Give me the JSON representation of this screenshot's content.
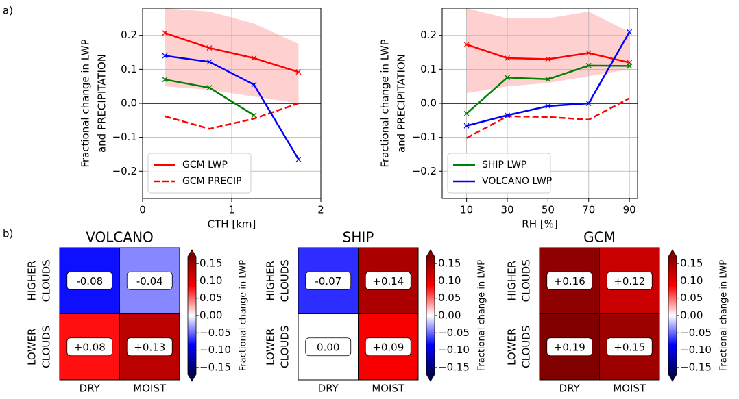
{
  "panel_labels": [
    "a)",
    "b)"
  ],
  "chart_data": [
    {
      "type": "line",
      "xlabel": "CTH [km]",
      "ylabel": [
        "Fractional change in LWP",
        "and PRECIPITATION"
      ],
      "x": [
        0.25,
        0.75,
        1.25,
        1.75
      ],
      "xlim": [
        0,
        2
      ],
      "xticks": [
        0,
        1,
        2
      ],
      "ylim": [
        -0.28,
        0.28
      ],
      "yticks": [
        {
          "value": -0.2,
          "label": "−0.2"
        },
        {
          "value": -0.1,
          "label": "−0.1"
        },
        {
          "value": 0,
          "label": "0.0"
        },
        0.1,
        0.2
      ],
      "grid": true,
      "hline": 0,
      "legend": "lower left",
      "band": {
        "color": "#ffd0d0",
        "lower": [
          0.05,
          0.04,
          0.02,
          0.0
        ],
        "upper": [
          0.28,
          0.27,
          0.235,
          0.175
        ]
      },
      "series": [
        {
          "name": "GCM LWP",
          "color": "#ff0000",
          "dash": false,
          "markers": true,
          "values": [
            0.207,
            0.163,
            0.133,
            0.092
          ]
        },
        {
          "name": "GCM PRECIP",
          "color": "#ff0000",
          "dash": true,
          "markers": false,
          "values": [
            -0.038,
            -0.075,
            -0.045,
            0.0
          ]
        },
        {
          "color": "#008000",
          "dash": false,
          "markers": true,
          "values": [
            0.07,
            0.046,
            -0.035,
            null
          ]
        },
        {
          "color": "#0000ff",
          "dash": false,
          "markers": true,
          "values": [
            0.14,
            0.122,
            0.055,
            -0.165
          ]
        }
      ]
    },
    {
      "type": "line",
      "xlabel": "RH [%]",
      "ylabel": [
        "Fractional change in LWP",
        "and PRECIPITATION"
      ],
      "x": [
        10,
        30,
        50,
        70,
        90
      ],
      "xlim": [
        -2,
        94
      ],
      "xticks": [
        10,
        30,
        50,
        70,
        90
      ],
      "ylim": [
        -0.28,
        0.28
      ],
      "yticks": [
        {
          "value": -0.2,
          "label": "−0.2"
        },
        {
          "value": -0.1,
          "label": "−0.1"
        },
        {
          "value": 0,
          "label": "0.0"
        },
        0.1,
        0.2
      ],
      "grid": true,
      "hline": 0,
      "legend": "lower left",
      "band": {
        "color": "#ffd0d0",
        "lower": [
          0.03,
          0.05,
          0.06,
          0.08,
          0.1
        ],
        "upper": [
          0.28,
          0.25,
          0.25,
          0.27,
          0.21
        ]
      },
      "series": [
        {
          "color": "#ff0000",
          "dash": false,
          "markers": true,
          "values": [
            0.173,
            0.133,
            0.13,
            0.148,
            0.12
          ]
        },
        {
          "color": "#ff0000",
          "dash": true,
          "markers": false,
          "values": [
            -0.102,
            -0.038,
            -0.04,
            -0.048,
            0.015
          ]
        },
        {
          "name": "SHIP LWP",
          "color": "#008000",
          "dash": false,
          "markers": true,
          "values": [
            -0.03,
            0.076,
            0.071,
            0.111,
            0.11
          ]
        },
        {
          "name": "VOLCANO LWP",
          "color": "#0000ff",
          "dash": false,
          "markers": true,
          "values": [
            -0.066,
            -0.035,
            -0.008,
            0.0,
            0.21
          ]
        }
      ]
    },
    {
      "type": "heatmap",
      "title": "VOLCANO",
      "rows": [
        [
          "HIGHER",
          "CLOUDS"
        ],
        [
          "LOWER",
          "CLOUDS"
        ]
      ],
      "columns": [
        "DRY",
        "MOIST"
      ],
      "values": [
        [
          -0.08,
          -0.04
        ],
        [
          0.08,
          0.13
        ]
      ],
      "value_labels": [
        [
          "-0.08",
          "-0.04"
        ],
        [
          "+0.08",
          "+0.13"
        ]
      ],
      "colormap": "seismic",
      "clim": [
        -0.17,
        0.17
      ],
      "colorbar_label": "Fractional change in LWP",
      "cticks": [
        {
          "value": 0.15,
          "label": "0.15"
        },
        {
          "value": 0.1,
          "label": "0.10"
        },
        {
          "value": 0.05,
          "label": "0.05"
        },
        {
          "value": 0,
          "label": "0.00"
        },
        {
          "value": -0.05,
          "label": "−0.05"
        },
        {
          "value": -0.1,
          "label": "−0.10"
        },
        {
          "value": -0.15,
          "label": "−0.15"
        }
      ]
    },
    {
      "type": "heatmap",
      "title": "SHIP",
      "rows": [
        [
          "HIGHER",
          "CLOUDS"
        ],
        [
          "LOWER",
          "CLOUDS"
        ]
      ],
      "columns": [
        "DRY",
        "MOIST"
      ],
      "values": [
        [
          -0.07,
          0.14
        ],
        [
          0.0,
          0.09
        ]
      ],
      "value_labels": [
        [
          "-0.07",
          "+0.14"
        ],
        [
          "0.00",
          "+0.09"
        ]
      ],
      "colormap": "seismic",
      "clim": [
        -0.17,
        0.17
      ],
      "colorbar_label": "Fractional change in LWP",
      "cticks": [
        {
          "value": 0.15,
          "label": "0.15"
        },
        {
          "value": 0.1,
          "label": "0.10"
        },
        {
          "value": 0.05,
          "label": "0.05"
        },
        {
          "value": 0,
          "label": "0.00"
        },
        {
          "value": -0.05,
          "label": "−0.05"
        },
        {
          "value": -0.1,
          "label": "−0.10"
        },
        {
          "value": -0.15,
          "label": "−0.15"
        }
      ]
    },
    {
      "type": "heatmap",
      "title": "GCM",
      "rows": [
        [
          "HIGHER",
          "CLOUDS"
        ],
        [
          "LOWER",
          "CLOUDS"
        ]
      ],
      "columns": [
        "DRY",
        "MOIST"
      ],
      "values": [
        [
          0.16,
          0.12
        ],
        [
          0.19,
          0.15
        ]
      ],
      "value_labels": [
        [
          "+0.16",
          "+0.12"
        ],
        [
          "+0.19",
          "+0.15"
        ]
      ],
      "colormap": "seismic",
      "clim": [
        -0.17,
        0.17
      ],
      "colorbar_label": "Fractional change in LWP",
      "cticks": [
        {
          "value": 0.15,
          "label": "0.15"
        },
        {
          "value": 0.1,
          "label": "0.10"
        },
        {
          "value": 0.05,
          "label": "0.05"
        },
        {
          "value": 0,
          "label": "0.00"
        },
        {
          "value": -0.05,
          "label": "−0.05"
        },
        {
          "value": -0.1,
          "label": "−0.10"
        },
        {
          "value": -0.15,
          "label": "−0.15"
        }
      ]
    }
  ]
}
